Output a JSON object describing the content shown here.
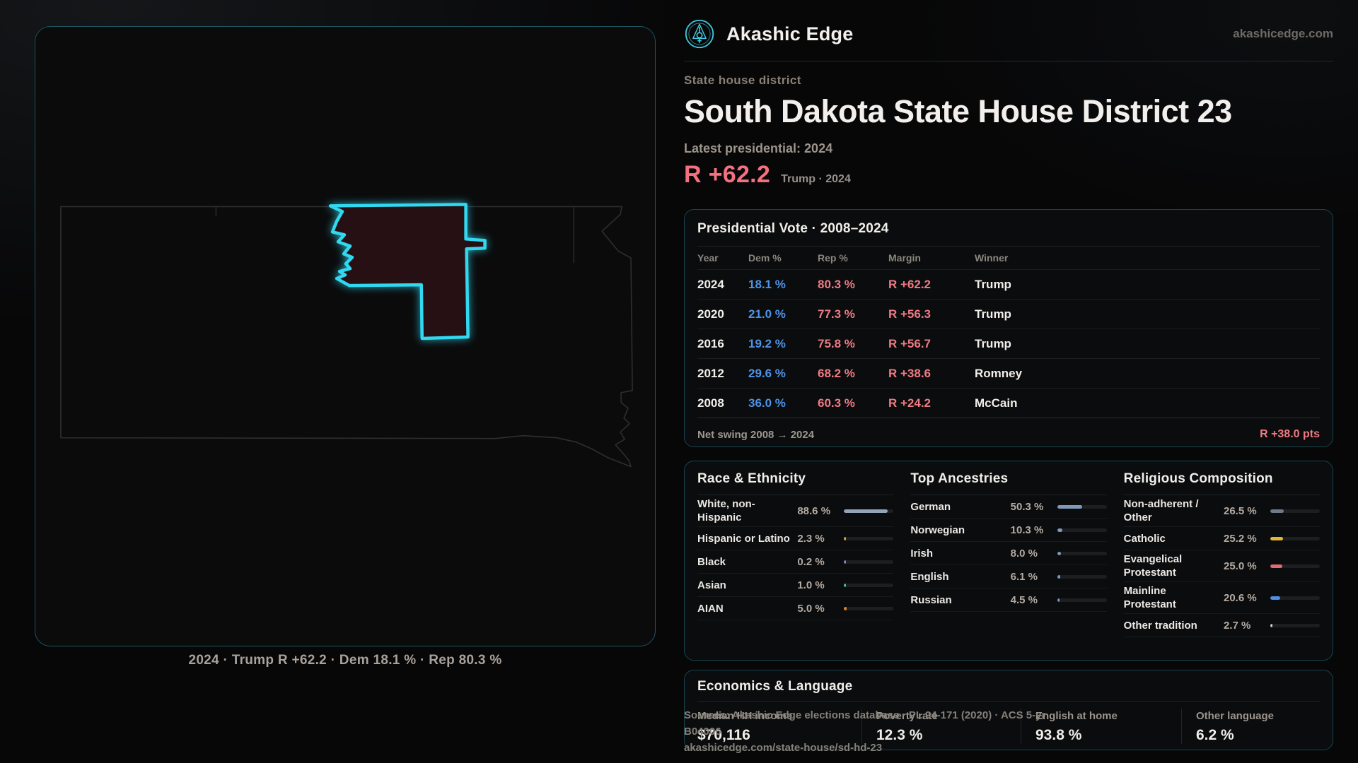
{
  "brand": {
    "name": "Akashic Edge",
    "domain": "akashicedge.com",
    "logo_icon": "akashic-emblem-icon"
  },
  "colors": {
    "accent_cyan": "#30d8f0",
    "dem_blue": "#4e93e6",
    "rep_red": "#ee7b84",
    "headline_red": "#f4707e",
    "gold": "#e0b63c",
    "card_border_teal": "#174450"
  },
  "page": {
    "kicker": "State house district",
    "title": "South Dakota State House District 23",
    "latest_label": "Latest presidential: 2024",
    "headline_margin": "R +62.2",
    "headline_context": "Trump · 2024"
  },
  "map": {
    "caption": "2024 · Trump R +62.2 · Dem 18.1 % · Rep 80.3 %"
  },
  "presidential": {
    "title": "Presidential Vote · 2008–2024",
    "columns": [
      "Year",
      "Dem %",
      "Rep %",
      "Margin",
      "Winner"
    ],
    "rows": [
      {
        "year": "2024",
        "dem": "18.1 %",
        "rep": "80.3 %",
        "margin": "R +62.2",
        "winner": "Trump"
      },
      {
        "year": "2020",
        "dem": "21.0 %",
        "rep": "77.3 %",
        "margin": "R +56.3",
        "winner": "Trump"
      },
      {
        "year": "2016",
        "dem": "19.2 %",
        "rep": "75.8 %",
        "margin": "R +56.7",
        "winner": "Trump"
      },
      {
        "year": "2012",
        "dem": "29.6 %",
        "rep": "68.2 %",
        "margin": "R +38.6",
        "winner": "Romney"
      },
      {
        "year": "2008",
        "dem": "36.0 %",
        "rep": "60.3 %",
        "margin": "R +24.2",
        "winner": "McCain"
      }
    ],
    "net_swing_label": "Net swing 2008 → 2024",
    "net_swing_value": "R +38.0 pts"
  },
  "race": {
    "title": "Race & Ethnicity",
    "rows": [
      {
        "label": "White, non-Hispanic",
        "value": "88.6 %",
        "pct": 88.6,
        "color": "#93a4ba"
      },
      {
        "label": "Hispanic or Latino",
        "value": "2.3 %",
        "pct": 2.3,
        "color": "#e8a23c"
      },
      {
        "label": "Black",
        "value": "0.2 %",
        "pct": 0.2,
        "color": "#8b7fd4"
      },
      {
        "label": "Asian",
        "value": "1.0 %",
        "pct": 1.0,
        "color": "#3fc49a"
      },
      {
        "label": "AIAN",
        "value": "5.0 %",
        "pct": 5.0,
        "color": "#e0861f"
      }
    ]
  },
  "ancestries": {
    "title": "Top Ancestries",
    "rows": [
      {
        "label": "German",
        "value": "50.3 %",
        "pct": 50.3,
        "color": "#7f99b8"
      },
      {
        "label": "Norwegian",
        "value": "10.3 %",
        "pct": 10.3,
        "color": "#7f99b8"
      },
      {
        "label": "Irish",
        "value": "8.0 %",
        "pct": 8.0,
        "color": "#7f99b8"
      },
      {
        "label": "English",
        "value": "6.1 %",
        "pct": 6.1,
        "color": "#7f99b8"
      },
      {
        "label": "Russian",
        "value": "4.5 %",
        "pct": 4.5,
        "color": "#7f99b8"
      }
    ]
  },
  "religion": {
    "title": "Religious Composition",
    "rows": [
      {
        "label": "Non-adherent / Other",
        "value": "26.5 %",
        "pct": 26.5,
        "color": "#6e7a8a"
      },
      {
        "label": "Catholic",
        "value": "25.2 %",
        "pct": 25.2,
        "color": "#e0b63c"
      },
      {
        "label": "Evangelical Protestant",
        "value": "25.0 %",
        "pct": 25.0,
        "color": "#e06c75"
      },
      {
        "label": "Mainline Protestant",
        "value": "20.6 %",
        "pct": 20.6,
        "color": "#4f8fe8"
      },
      {
        "label": "Other tradition",
        "value": "2.7 %",
        "pct": 2.7,
        "color": "#c9cdd3"
      }
    ]
  },
  "economics": {
    "title": "Economics & Language",
    "stats": [
      {
        "label": "Median HH income",
        "value": "$70,116"
      },
      {
        "label": "Poverty rate",
        "value": "12.3 %"
      },
      {
        "label": "English at home",
        "value": "93.8 %"
      },
      {
        "label": "Other language",
        "value": "6.2 %"
      }
    ]
  },
  "sources": {
    "line1": "Sources: Akashic Edge elections database · PL 94-171 (2020) · ACS 5-yr B04006",
    "line2": "akashicedge.com/state-house/sd-hd-23"
  }
}
